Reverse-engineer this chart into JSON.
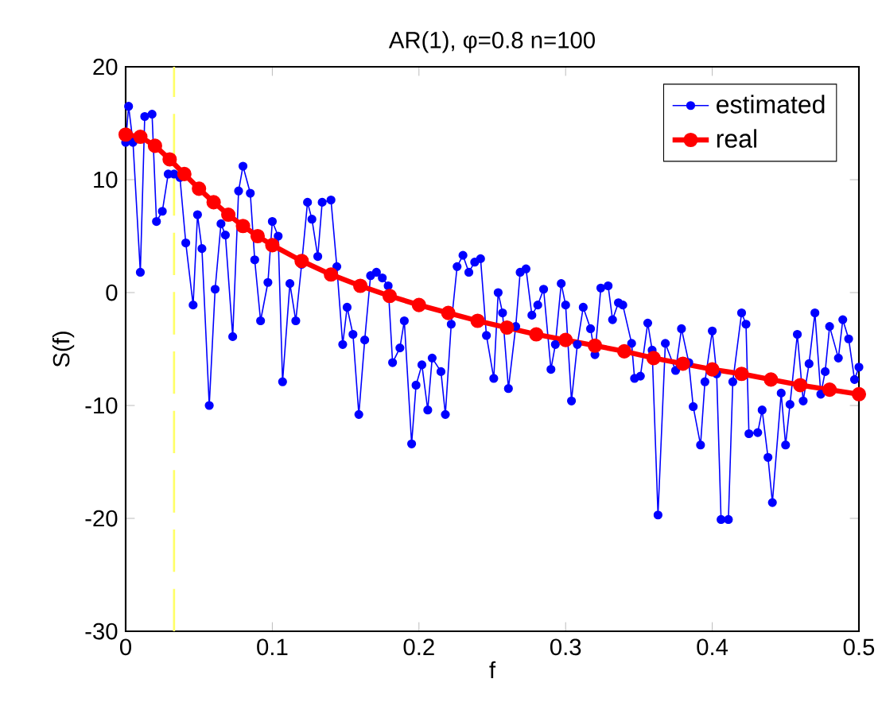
{
  "chart_data": {
    "type": "line",
    "title": "AR(1), φ=0.8 n=100",
    "xlabel": "f",
    "ylabel": "S(f)",
    "xlim": [
      0,
      0.5
    ],
    "ylim": [
      -30,
      20
    ],
    "xticks": [
      0,
      0.1,
      0.2,
      0.3,
      0.4,
      0.5
    ],
    "yticks": [
      -30,
      -20,
      -10,
      0,
      10,
      20
    ],
    "legend": "top right",
    "marker": "circle",
    "line_style": "solid",
    "ref_lines": [
      {
        "axis": "x",
        "value": 0.033,
        "color": "#ffff66",
        "line_style": "dashed"
      }
    ],
    "series": [
      {
        "name": "estimated",
        "color": "#0000ff",
        "x": [
          0,
          0.002,
          0.005,
          0.01,
          0.013,
          0.018,
          0.021,
          0.025,
          0.029,
          0.033,
          0.037,
          0.041,
          0.046,
          0.049,
          0.052,
          0.057,
          0.061,
          0.065,
          0.068,
          0.073,
          0.077,
          0.08,
          0.085,
          0.088,
          0.092,
          0.097,
          0.1,
          0.104,
          0.107,
          0.112,
          0.116,
          0.12,
          0.124,
          0.127,
          0.131,
          0.134,
          0.14,
          0.144,
          0.148,
          0.151,
          0.155,
          0.159,
          0.163,
          0.167,
          0.171,
          0.175,
          0.179,
          0.182,
          0.187,
          0.19,
          0.195,
          0.198,
          0.202,
          0.206,
          0.209,
          0.215,
          0.218,
          0.222,
          0.226,
          0.23,
          0.234,
          0.238,
          0.242,
          0.246,
          0.251,
          0.254,
          0.257,
          0.261,
          0.266,
          0.269,
          0.273,
          0.277,
          0.281,
          0.285,
          0.29,
          0.293,
          0.297,
          0.3,
          0.304,
          0.308,
          0.312,
          0.317,
          0.32,
          0.324,
          0.329,
          0.332,
          0.336,
          0.339,
          0.345,
          0.347,
          0.351,
          0.356,
          0.359,
          0.363,
          0.368,
          0.375,
          0.379,
          0.384,
          0.387,
          0.392,
          0.395,
          0.4,
          0.403,
          0.406,
          0.411,
          0.414,
          0.42,
          0.423,
          0.425,
          0.431,
          0.434,
          0.438,
          0.441,
          0.447,
          0.45,
          0.453,
          0.458,
          0.462,
          0.466,
          0.47,
          0.474,
          0.477,
          0.48,
          0.486,
          0.489,
          0.493,
          0.497,
          0.5
        ],
        "values": [
          13.3,
          16.5,
          13.3,
          1.8,
          15.6,
          15.8,
          6.3,
          7.2,
          10.5,
          10.5,
          10.2,
          4.4,
          -1.1,
          6.9,
          3.9,
          -10,
          0.3,
          6.1,
          5.1,
          -3.9,
          9,
          11.2,
          8.8,
          2.9,
          -2.5,
          0.9,
          6.3,
          5,
          -7.9,
          0.8,
          -2.5,
          2.5,
          8,
          6.5,
          3.2,
          8,
          8.2,
          2.3,
          -4.6,
          -1.3,
          -3.7,
          -10.8,
          -4.2,
          1.5,
          1.8,
          1.3,
          0.6,
          -6.2,
          -4.9,
          -2.5,
          -13.4,
          -8.2,
          -6.4,
          -10.4,
          -5.8,
          -7,
          -10.8,
          -2.8,
          2.3,
          3.3,
          1.8,
          2.7,
          3,
          -3.8,
          -7.6,
          0,
          -1.8,
          -8.5,
          -3,
          1.8,
          2.1,
          -2,
          -1.1,
          0.3,
          -6.8,
          -4.6,
          0.8,
          -1.1,
          -9.6,
          -4.6,
          -1.3,
          -3.2,
          -5.5,
          0.4,
          0.6,
          -2.4,
          -0.9,
          -1.1,
          -4.5,
          -7.6,
          -7.4,
          -2.7,
          -5.1,
          -19.7,
          -4.5,
          -6.9,
          -3.2,
          -6.2,
          -10.1,
          -13.5,
          -7.9,
          -3.4,
          -7.2,
          -20.1,
          -20.1,
          -7.9,
          -1.8,
          -2.8,
          -12.5,
          -12.4,
          -10.4,
          -14.6,
          -18.6,
          -8.9,
          -13.5,
          -9.9,
          -3.7,
          -9.6,
          -6.3,
          -1.8,
          -9,
          -7,
          -3,
          -5.8,
          -2.4,
          -4.1,
          -7.7,
          -6.6
        ]
      },
      {
        "name": "real",
        "color": "#ff0000",
        "x": [
          0,
          0.01,
          0.02,
          0.03,
          0.04,
          0.05,
          0.06,
          0.07,
          0.08,
          0.09,
          0.1,
          0.12,
          0.14,
          0.16,
          0.18,
          0.2,
          0.22,
          0.24,
          0.26,
          0.28,
          0.3,
          0.32,
          0.34,
          0.36,
          0.38,
          0.4,
          0.42,
          0.44,
          0.46,
          0.48,
          0.5
        ],
        "values": [
          14,
          13.8,
          13,
          11.8,
          10.5,
          9.2,
          8,
          6.9,
          5.9,
          5,
          4.2,
          2.8,
          1.6,
          0.6,
          -0.3,
          -1.1,
          -1.8,
          -2.5,
          -3.1,
          -3.7,
          -4.2,
          -4.7,
          -5.2,
          -5.8,
          -6.3,
          -6.8,
          -7.2,
          -7.7,
          -8.2,
          -8.6,
          -9
        ]
      }
    ]
  }
}
